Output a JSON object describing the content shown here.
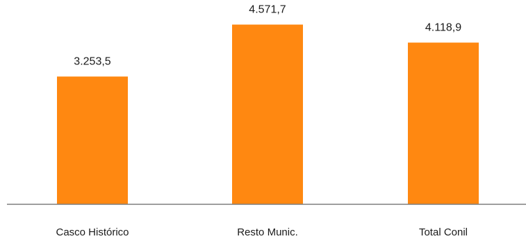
{
  "chart_data": {
    "type": "bar",
    "categories": [
      "Casco Histórico",
      "Resto Munic.",
      "Total Conil"
    ],
    "values": [
      3253.5,
      4571.7,
      4118.9
    ],
    "value_labels": [
      "3.253,5",
      "4.571,7",
      "4.118,9"
    ],
    "title": "",
    "xlabel": "",
    "ylabel": "",
    "ylim": [
      0,
      5200
    ],
    "grid": false,
    "legend": "none",
    "bar_color": "#FF8811",
    "axis_color": "#7f7f7f"
  }
}
